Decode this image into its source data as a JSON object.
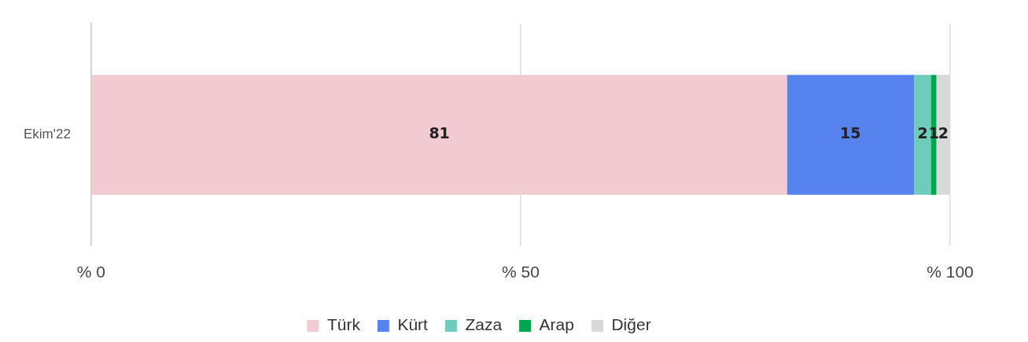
{
  "chart_data": {
    "type": "bar",
    "orientation": "horizontal",
    "stacked": true,
    "categories": [
      "Ekim'22"
    ],
    "series": [
      {
        "name": "Türk",
        "color": "#f2cad2",
        "values": [
          81.0
        ],
        "value_labels": [
          "81"
        ]
      },
      {
        "name": "Kürt",
        "color": "#5783ef",
        "values": [
          14.8
        ],
        "value_labels": [
          "15"
        ]
      },
      {
        "name": "Zaza",
        "color": "#6fcbbb",
        "values": [
          2.0
        ],
        "value_labels": [
          "2"
        ]
      },
      {
        "name": "Arap",
        "color": "#00a650",
        "values": [
          0.6
        ],
        "value_labels": [
          "1"
        ]
      },
      {
        "name": "Diğer",
        "color": "#d9d9d9",
        "values": [
          1.6
        ],
        "value_labels": [
          "2"
        ]
      }
    ],
    "xlim": [
      0,
      100
    ],
    "xticks": [
      {
        "value": 0,
        "label": "% 0"
      },
      {
        "value": 50,
        "label": "% 50"
      },
      {
        "value": 100,
        "label": "% 100"
      }
    ],
    "grid": "x",
    "legend": "bottom"
  }
}
